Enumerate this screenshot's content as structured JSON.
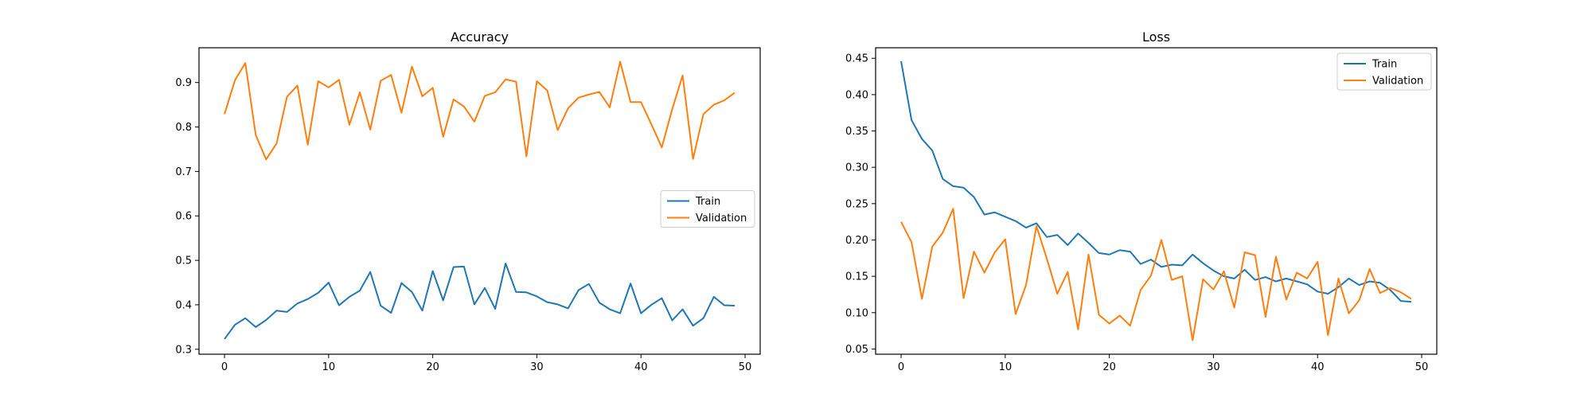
{
  "colors": {
    "train": "#1f77b4",
    "validation": "#ff7f0e",
    "axes": "#000000",
    "background": "#ffffff"
  },
  "chart_data": [
    {
      "type": "line",
      "title": "Accuracy",
      "xlabel": "",
      "ylabel": "",
      "xlim": [
        -2.45,
        51.45
      ],
      "ylim": [
        0.2889,
        0.9782
      ],
      "xticks": [
        0,
        10,
        20,
        30,
        40,
        50
      ],
      "yticks": [
        0.3,
        0.4,
        0.5,
        0.6,
        0.7,
        0.8,
        0.9
      ],
      "ytick_labels": [
        "0.3",
        "0.4",
        "0.5",
        "0.6",
        "0.7",
        "0.8",
        "0.9"
      ],
      "grid": false,
      "legend": "center-right",
      "x": [
        0,
        1,
        2,
        3,
        4,
        5,
        6,
        7,
        8,
        9,
        10,
        11,
        12,
        13,
        14,
        15,
        16,
        17,
        18,
        19,
        20,
        21,
        22,
        23,
        24,
        25,
        26,
        27,
        28,
        29,
        30,
        31,
        32,
        33,
        34,
        35,
        36,
        37,
        38,
        39,
        40,
        41,
        42,
        43,
        44,
        45,
        46,
        47,
        48,
        49
      ],
      "series": [
        {
          "name": "Train",
          "color": "#1f77b4",
          "values": [
            0.323,
            0.355,
            0.37,
            0.35,
            0.366,
            0.387,
            0.384,
            0.403,
            0.413,
            0.427,
            0.45,
            0.399,
            0.418,
            0.432,
            0.474,
            0.398,
            0.382,
            0.449,
            0.429,
            0.387,
            0.476,
            0.41,
            0.485,
            0.486,
            0.401,
            0.438,
            0.391,
            0.493,
            0.429,
            0.428,
            0.419,
            0.406,
            0.401,
            0.392,
            0.433,
            0.447,
            0.405,
            0.39,
            0.381,
            0.448,
            0.381,
            0.4,
            0.415,
            0.365,
            0.39,
            0.353,
            0.37,
            0.418,
            0.399,
            0.398
          ]
        },
        {
          "name": "Validation",
          "color": "#ff7f0e",
          "values": [
            0.829,
            0.905,
            0.944,
            0.782,
            0.727,
            0.763,
            0.868,
            0.893,
            0.76,
            0.903,
            0.889,
            0.906,
            0.805,
            0.878,
            0.794,
            0.904,
            0.917,
            0.832,
            0.936,
            0.869,
            0.888,
            0.778,
            0.862,
            0.846,
            0.812,
            0.87,
            0.878,
            0.907,
            0.902,
            0.734,
            0.903,
            0.882,
            0.793,
            0.842,
            0.866,
            0.873,
            0.879,
            0.844,
            0.947,
            0.856,
            0.856,
            0.806,
            0.754,
            0.84,
            0.916,
            0.728,
            0.829,
            0.85,
            0.86,
            0.877
          ]
        }
      ]
    },
    {
      "type": "line",
      "title": "Loss",
      "xlabel": "",
      "ylabel": "",
      "xlim": [
        -2.45,
        51.45
      ],
      "ylim": [
        0.0428,
        0.4645
      ],
      "xticks": [
        0,
        10,
        20,
        30,
        40,
        50
      ],
      "yticks": [
        0.05,
        0.1,
        0.15,
        0.2,
        0.25,
        0.3,
        0.35,
        0.4,
        0.45
      ],
      "ytick_labels": [
        "0.05",
        "0.10",
        "0.15",
        "0.20",
        "0.25",
        "0.30",
        "0.35",
        "0.40",
        "0.45"
      ],
      "grid": false,
      "legend": "top-right",
      "x": [
        0,
        1,
        2,
        3,
        4,
        5,
        6,
        7,
        8,
        9,
        10,
        11,
        12,
        13,
        14,
        15,
        16,
        17,
        18,
        19,
        20,
        21,
        22,
        23,
        24,
        25,
        26,
        27,
        28,
        29,
        30,
        31,
        32,
        33,
        34,
        35,
        36,
        37,
        38,
        39,
        40,
        41,
        42,
        43,
        44,
        45,
        46,
        47,
        48,
        49
      ],
      "series": [
        {
          "name": "Train",
          "color": "#1f77b4",
          "values": [
            0.446,
            0.365,
            0.339,
            0.323,
            0.284,
            0.274,
            0.272,
            0.259,
            0.235,
            0.238,
            0.232,
            0.226,
            0.217,
            0.223,
            0.204,
            0.207,
            0.193,
            0.209,
            0.196,
            0.182,
            0.18,
            0.186,
            0.184,
            0.167,
            0.173,
            0.163,
            0.166,
            0.165,
            0.18,
            0.168,
            0.158,
            0.15,
            0.147,
            0.159,
            0.145,
            0.149,
            0.143,
            0.147,
            0.143,
            0.139,
            0.129,
            0.126,
            0.135,
            0.147,
            0.138,
            0.143,
            0.141,
            0.131,
            0.116,
            0.115
          ]
        },
        {
          "name": "Validation",
          "color": "#ff7f0e",
          "values": [
            0.225,
            0.197,
            0.119,
            0.191,
            0.21,
            0.243,
            0.12,
            0.184,
            0.155,
            0.183,
            0.201,
            0.098,
            0.138,
            0.219,
            0.174,
            0.126,
            0.156,
            0.077,
            0.18,
            0.097,
            0.085,
            0.096,
            0.082,
            0.131,
            0.151,
            0.2,
            0.145,
            0.15,
            0.062,
            0.146,
            0.132,
            0.157,
            0.107,
            0.183,
            0.179,
            0.094,
            0.177,
            0.118,
            0.155,
            0.147,
            0.17,
            0.069,
            0.147,
            0.099,
            0.117,
            0.16,
            0.127,
            0.134,
            0.128,
            0.119
          ]
        }
      ]
    }
  ]
}
